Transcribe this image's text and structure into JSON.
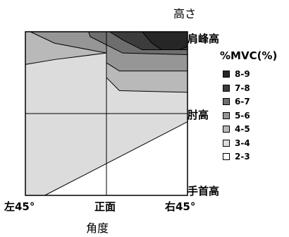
{
  "chart_data": {
    "type": "contour",
    "title": "",
    "xlabel": "角度",
    "ylabel": "高さ",
    "x_ticks": [
      "左45°",
      "正面",
      "右45°"
    ],
    "y_ticks": [
      "手首高",
      "肘高",
      "肩峰高"
    ],
    "legend_title": "%MVC(%)",
    "legend_position": "right",
    "grid": true,
    "levels": [
      {
        "label": "8-9",
        "color": "#262626"
      },
      {
        "label": "7-8",
        "color": "#3c3c3c"
      },
      {
        "label": "6-7",
        "color": "#6e6e6e"
      },
      {
        "label": "5-6",
        "color": "#969696"
      },
      {
        "label": "4-5",
        "color": "#b9b9b9"
      },
      {
        "label": "3-4",
        "color": "#dcdcdc"
      },
      {
        "label": "2-3",
        "color": "#ffffff"
      }
    ],
    "regions": [
      {
        "level": "3-4",
        "points": [
          [
            0,
            0
          ],
          [
            1,
            0
          ],
          [
            1,
            1
          ],
          [
            0,
            1
          ]
        ]
      },
      {
        "level": "2-3",
        "points": [
          [
            0.12,
            0
          ],
          [
            1,
            0
          ],
          [
            1,
            0.45
          ]
        ]
      },
      {
        "level": "4-5",
        "points": [
          [
            0,
            1
          ],
          [
            0,
            0.8
          ],
          [
            0.18,
            0.83
          ],
          [
            0.5,
            0.87
          ],
          [
            0.5,
            0.72
          ],
          [
            0.58,
            0.64
          ],
          [
            1,
            0.63
          ],
          [
            1,
            1
          ]
        ]
      },
      {
        "level": "5-6",
        "points": [
          [
            0.03,
            1
          ],
          [
            0.18,
            0.93
          ],
          [
            0.5,
            0.87
          ],
          [
            0.5,
            0.81
          ],
          [
            0.58,
            0.76
          ],
          [
            1,
            0.76
          ],
          [
            1,
            1
          ]
        ]
      },
      {
        "level": "6-7",
        "points": [
          [
            0.39,
            1
          ],
          [
            0.4,
            0.97
          ],
          [
            0.6,
            0.87
          ],
          [
            1,
            0.86
          ],
          [
            1,
            1
          ]
        ]
      },
      {
        "level": "7-8",
        "points": [
          [
            0.52,
            1
          ],
          [
            0.6,
            0.95
          ],
          [
            0.72,
            0.89
          ],
          [
            1,
            0.89
          ],
          [
            1,
            1
          ]
        ]
      },
      {
        "level": "8-9",
        "points": [
          [
            0.72,
            1
          ],
          [
            0.78,
            0.93
          ],
          [
            0.84,
            0.89
          ],
          [
            0.95,
            0.89
          ],
          [
            1,
            0.91
          ],
          [
            1,
            1
          ]
        ]
      }
    ]
  }
}
